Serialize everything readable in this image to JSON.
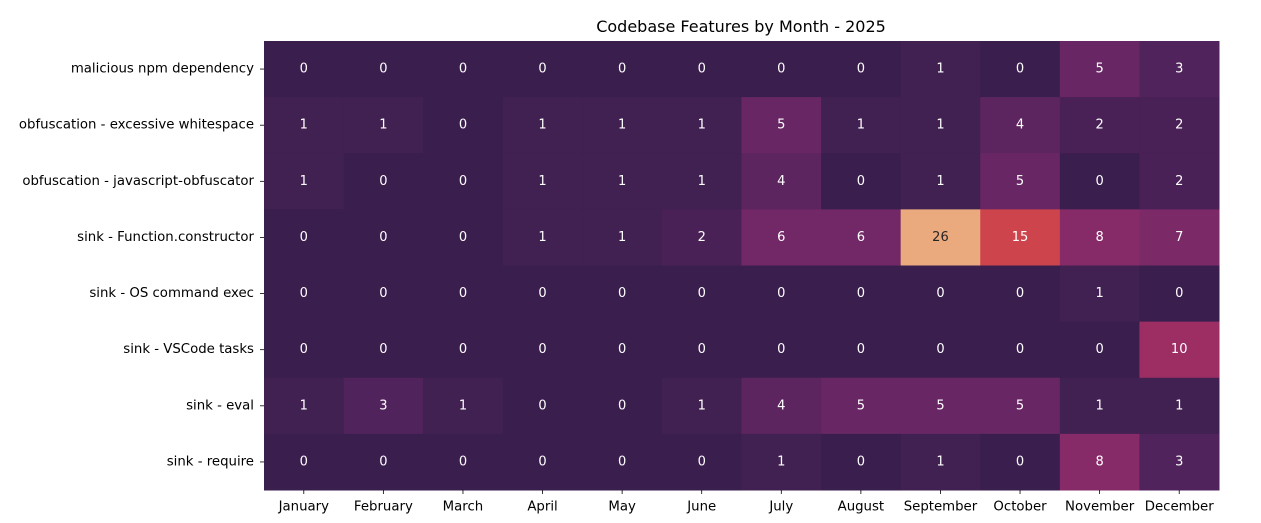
{
  "chart_data": {
    "type": "heatmap",
    "title": "Codebase Features by Month - 2025",
    "xlabel": "",
    "ylabel": "",
    "x_categories": [
      "January",
      "February",
      "March",
      "April",
      "May",
      "June",
      "July",
      "August",
      "September",
      "October",
      "November",
      "December"
    ],
    "y_categories": [
      "malicious npm dependency",
      "obfuscation - excessive whitespace",
      "obfuscation - javascript-obfuscator",
      "sink - Function.constructor",
      "sink - OS command exec",
      "sink - VSCode tasks",
      "sink - eval",
      "sink - require"
    ],
    "values": [
      [
        0,
        0,
        0,
        0,
        0,
        0,
        0,
        0,
        1,
        0,
        5,
        3
      ],
      [
        1,
        1,
        0,
        1,
        1,
        1,
        5,
        1,
        1,
        4,
        2,
        2
      ],
      [
        1,
        0,
        0,
        1,
        1,
        1,
        4,
        0,
        1,
        5,
        0,
        2
      ],
      [
        0,
        0,
        0,
        1,
        1,
        2,
        6,
        6,
        26,
        15,
        8,
        7
      ],
      [
        0,
        0,
        0,
        0,
        0,
        0,
        0,
        0,
        0,
        0,
        1,
        0
      ],
      [
        0,
        0,
        0,
        0,
        0,
        0,
        0,
        0,
        0,
        0,
        0,
        10
      ],
      [
        1,
        3,
        1,
        0,
        0,
        1,
        4,
        5,
        5,
        5,
        1,
        1
      ],
      [
        0,
        0,
        0,
        0,
        0,
        0,
        1,
        0,
        1,
        0,
        8,
        3
      ]
    ],
    "value_range": [
      0,
      26
    ],
    "colormap": "rocket",
    "colorbar": false,
    "annotations": true,
    "annotation_color": "#ffffff",
    "annotation_color_high": "#262626"
  }
}
